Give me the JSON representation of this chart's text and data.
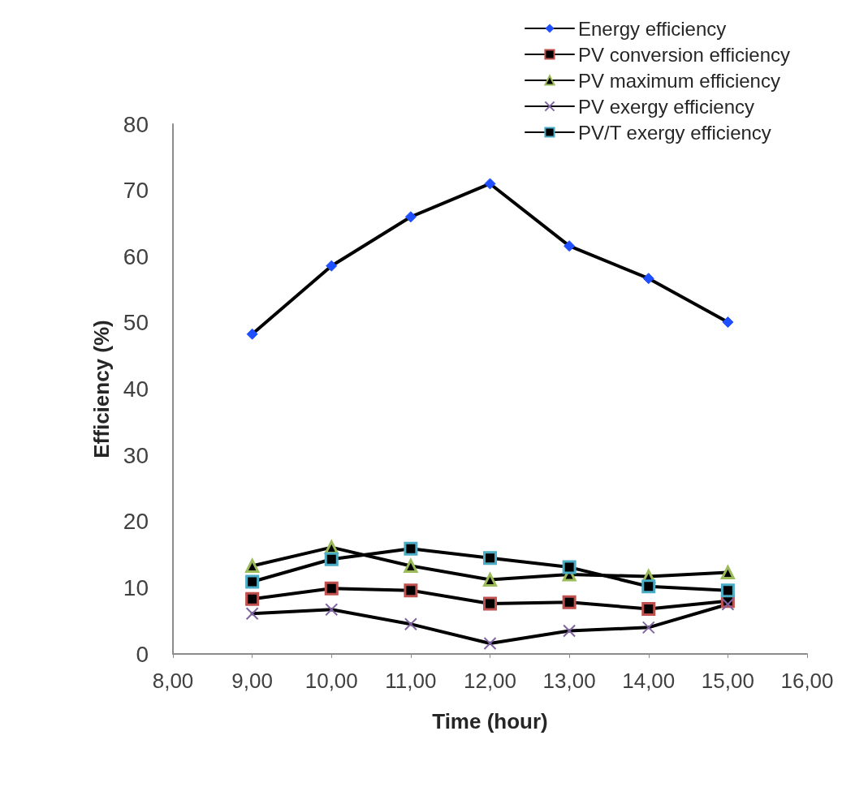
{
  "chart_data": {
    "type": "line",
    "xlabel": "Time (hour)",
    "ylabel": "Efficiency (%)",
    "x": [
      9,
      10,
      11,
      12,
      13,
      14,
      15
    ],
    "series": [
      {
        "name": "Energy efficiency",
        "color": "#1f4fff",
        "marker": "diamond",
        "values": [
          48.3,
          58.6,
          66,
          71,
          61.6,
          56.7,
          50.1
        ]
      },
      {
        "name": "PV conversion efficiency",
        "color": "#c0504d",
        "marker": "square",
        "values": [
          8.3,
          9.9,
          9.6,
          7.6,
          7.8,
          6.8,
          8.0
        ]
      },
      {
        "name": "PV maximum efficiency",
        "color": "#9bbb59",
        "marker": "triangle",
        "values": [
          13.3,
          16.1,
          13.3,
          11.2,
          12.0,
          11.7,
          12.3
        ]
      },
      {
        "name": "PV exergy efficiency",
        "color": "#8064a2",
        "marker": "cross",
        "values": [
          6.1,
          6.7,
          4.5,
          1.6,
          3.5,
          4.0,
          7.5
        ]
      },
      {
        "name": "PV/T exergy efficiency",
        "color": "#4bacc6",
        "marker": "square",
        "values": [
          10.9,
          14.3,
          15.9,
          14.5,
          13.1,
          10.2,
          9.6
        ]
      }
    ],
    "xlim": [
      8,
      16
    ],
    "xticks": [
      {
        "value": 8,
        "label": "8,00"
      },
      {
        "value": 9,
        "label": "9,00"
      },
      {
        "value": 10,
        "label": "10,00"
      },
      {
        "value": 11,
        "label": "11,00"
      },
      {
        "value": 12,
        "label": "12,00"
      },
      {
        "value": 13,
        "label": "13,00"
      },
      {
        "value": 14,
        "label": "14,00"
      },
      {
        "value": 15,
        "label": "15,00"
      },
      {
        "value": 16,
        "label": "16,00"
      }
    ],
    "ylim": [
      0,
      80
    ],
    "yticks": [
      0,
      10,
      20,
      30,
      40,
      50,
      60,
      70,
      80
    ],
    "grid": false,
    "legend": "top right",
    "line_style": "solid"
  }
}
